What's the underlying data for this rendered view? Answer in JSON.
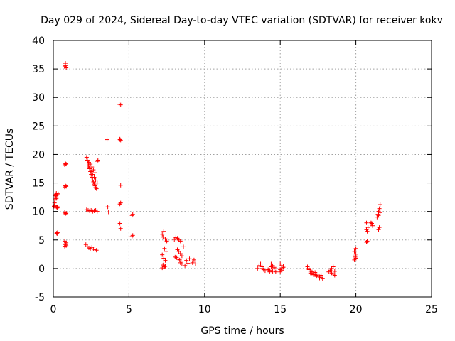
{
  "chart_data": {
    "type": "scatter",
    "title": "Day 029 of 2024, Sidereal Day-to-day VTEC variation (SDTVAR) for receiver kokv",
    "xlabel": "GPS time / hours",
    "ylabel": "SDTVAR / TECUs",
    "xlim": [
      0,
      25
    ],
    "ylim": [
      -5,
      40
    ],
    "xticks": [
      0,
      5,
      10,
      15,
      20,
      25
    ],
    "yticks": [
      -5,
      0,
      5,
      10,
      15,
      20,
      25,
      30,
      35,
      40
    ],
    "grid": true,
    "marker": "plus",
    "color": "#ff0000",
    "series": [
      {
        "name": "SDTVAR",
        "x": [
          0.05,
          0.08,
          0.1,
          0.12,
          0.15,
          0.18,
          0.2,
          0.22,
          0.25,
          0.28,
          0.3,
          0.32,
          0.08,
          0.12,
          0.18,
          0.22,
          0.25,
          0.28,
          0.3,
          0.2,
          0.25,
          0.3,
          0.75,
          0.8,
          0.85,
          0.75,
          0.8,
          0.85,
          0.75,
          0.8,
          0.85,
          0.75,
          0.8,
          0.85,
          0.75,
          0.8,
          0.85,
          0.75,
          0.8,
          0.85,
          0.8,
          2.2,
          2.25,
          2.3,
          2.35,
          2.4,
          2.45,
          2.5,
          2.55,
          2.6,
          2.65,
          2.7,
          2.75,
          2.8,
          2.85,
          2.9,
          2.95,
          2.3,
          2.4,
          2.5,
          2.6,
          2.7,
          2.8,
          2.9,
          2.35,
          2.45,
          2.55,
          2.65,
          2.75,
          2.2,
          2.3,
          2.4,
          2.5,
          2.6,
          2.7,
          2.8,
          2.9,
          2.15,
          2.25,
          2.35,
          2.45,
          2.55,
          2.65,
          2.75,
          2.85,
          3.55,
          3.6,
          3.65,
          4.35,
          4.4,
          4.45,
          4.4,
          4.45,
          4.4,
          4.45,
          4.4,
          4.45,
          4.45,
          5.2,
          5.25,
          5.2,
          5.25,
          7.2,
          7.3,
          7.4,
          7.5,
          7.25,
          7.35,
          7.45,
          7.2,
          7.3,
          7.4,
          7.25,
          7.35,
          7.2,
          7.3,
          7.4,
          8.0,
          8.1,
          8.2,
          8.3,
          8.4,
          8.05,
          8.15,
          8.25,
          8.35,
          8.2,
          8.3,
          8.4,
          8.5,
          8.4,
          8.5,
          8.7,
          8.8,
          9.0,
          9.2,
          9.4,
          8.9,
          9.3,
          8.6,
          13.5,
          13.6,
          13.7,
          13.8,
          13.9,
          13.6,
          13.8,
          14.0,
          14.2,
          14.3,
          14.4,
          14.5,
          14.6,
          14.3,
          14.5,
          14.7,
          14.4,
          14.6,
          15.0,
          15.1,
          15.2,
          15.0,
          15.1,
          15.2,
          15.0,
          15.1,
          16.8,
          16.9,
          17.0,
          17.1,
          17.2,
          17.3,
          17.4,
          17.5,
          17.6,
          17.7,
          17.8,
          16.9,
          17.1,
          17.3,
          17.5,
          17.7,
          17.0,
          17.2,
          17.4,
          17.6,
          18.2,
          18.3,
          18.4,
          18.5,
          18.6,
          18.4,
          18.5,
          18.6,
          19.9,
          19.95,
          20.0,
          19.9,
          20.0,
          19.95,
          20.0,
          20.7,
          20.75,
          20.8,
          20.7,
          20.75,
          20.7,
          21.0,
          21.1,
          21.05,
          21.4,
          21.45,
          21.5,
          21.5,
          21.55,
          21.6,
          21.5,
          21.55,
          21.6
        ],
        "y": [
          10.9,
          11.5,
          12.0,
          12.5,
          12.8,
          13.0,
          13.2,
          10.8,
          10.6,
          10.8,
          12.9,
          13.1,
          11.0,
          12.2,
          12.7,
          6.2,
          6.1,
          6.3,
          12.9,
          12.3,
          10.8,
          10.7,
          35.4,
          35.6,
          35.2,
          18.2,
          18.4,
          18.3,
          14.3,
          14.5,
          14.4,
          9.8,
          9.6,
          9.7,
          4.8,
          4.3,
          4.0,
          3.9,
          4.2,
          4.5,
          36.0,
          19.5,
          19.0,
          18.5,
          18.0,
          17.6,
          17.0,
          16.5,
          16.0,
          15.5,
          15.2,
          14.8,
          14.5,
          14.2,
          14.0,
          18.8,
          19.0,
          18.0,
          17.5,
          17.0,
          16.5,
          16.0,
          15.5,
          15.0,
          18.6,
          18.3,
          17.8,
          17.3,
          16.8,
          10.3,
          10.2,
          10.1,
          10.2,
          10.0,
          10.1,
          10.2,
          10.0,
          4.2,
          3.8,
          3.6,
          3.5,
          3.7,
          3.4,
          3.3,
          3.2,
          22.6,
          10.8,
          9.9,
          28.8,
          22.6,
          14.6,
          11.3,
          11.5,
          7.9,
          7.0,
          22.7,
          28.7,
          22.5,
          9.3,
          9.5,
          5.6,
          5.8,
          6.0,
          6.5,
          5.2,
          4.8,
          5.5,
          3.5,
          3.0,
          2.4,
          1.8,
          1.4,
          0.6,
          0.3,
          0.1,
          0.8,
          0.4,
          5.1,
          5.4,
          5.3,
          5.0,
          4.8,
          2.0,
          1.9,
          1.6,
          1.5,
          3.3,
          3.0,
          2.6,
          2.2,
          1.0,
          0.8,
          0.5,
          1.4,
          1.7,
          1.0,
          0.8,
          0.9,
          1.5,
          3.8,
          0.0,
          0.5,
          0.8,
          0.3,
          -0.2,
          0.4,
          0.0,
          -0.4,
          -0.2,
          -0.6,
          0.3,
          0.5,
          0.2,
          -0.3,
          -0.5,
          -0.6,
          0.8,
          0.0,
          -0.6,
          -0.3,
          0.2,
          0.8,
          0.5,
          0.4,
          -0.2,
          0.1,
          0.3,
          -0.2,
          -0.5,
          -0.8,
          -1.0,
          -1.0,
          -1.2,
          -1.3,
          -1.5,
          -1.6,
          -1.8,
          0.0,
          -0.6,
          -0.7,
          -1.0,
          -1.2,
          -0.8,
          -1.1,
          -1.4,
          -1.7,
          -0.6,
          -0.3,
          -0.8,
          -1.0,
          -1.2,
          0.0,
          0.3,
          -0.5,
          1.5,
          2.0,
          2.5,
          3.0,
          3.5,
          2.2,
          1.8,
          4.6,
          4.8,
          7.2,
          8.0,
          6.5,
          6.8,
          8.0,
          7.5,
          7.9,
          9.0,
          9.5,
          9.3,
          10.0,
          10.5,
          11.2,
          6.8,
          7.2,
          9.8
        ]
      }
    ]
  }
}
